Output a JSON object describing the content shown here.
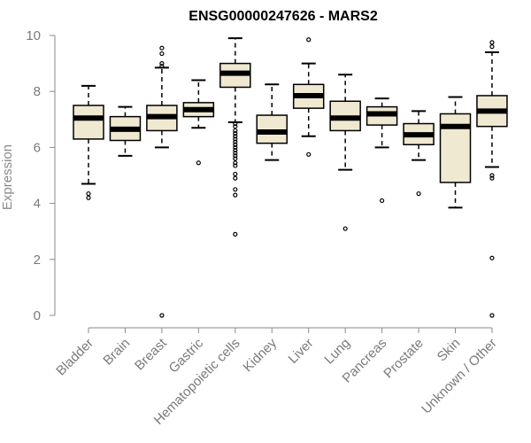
{
  "chart_data": {
    "type": "box",
    "title": "ENSG00000247626 - MARS2",
    "xlabel": "",
    "ylabel": "Expression",
    "ylim": [
      0,
      10
    ],
    "yticks": [
      0,
      2,
      4,
      6,
      8,
      10
    ],
    "grid": false,
    "colors": {
      "box_fill": "#efe9d2",
      "box_stroke": "#000000",
      "axis": "#8a8a8a"
    },
    "categories": [
      "Bladder",
      "Brain",
      "Breast",
      "Gastric",
      "Hematopoietic cells",
      "Kidney",
      "Liver",
      "Lung",
      "Pancreas",
      "Prostate",
      "Skin",
      "Unknown / Other"
    ],
    "boxes": [
      {
        "label": "Bladder",
        "whisker_low": 4.7,
        "q1": 6.3,
        "median": 7.05,
        "q3": 7.5,
        "whisker_high": 8.2,
        "outliers": [
          4.35,
          4.2
        ]
      },
      {
        "label": "Brain",
        "whisker_low": 5.7,
        "q1": 6.25,
        "median": 6.65,
        "q3": 7.1,
        "whisker_high": 7.45,
        "outliers": []
      },
      {
        "label": "Breast",
        "whisker_low": 6.0,
        "q1": 6.6,
        "median": 7.1,
        "q3": 7.5,
        "whisker_high": 8.85,
        "outliers": [
          9.55,
          9.35,
          9.0,
          8.9,
          0.0
        ]
      },
      {
        "label": "Gastric",
        "whisker_low": 6.7,
        "q1": 7.1,
        "median": 7.35,
        "q3": 7.6,
        "whisker_high": 8.4,
        "outliers": [
          5.45
        ]
      },
      {
        "label": "Hematopoietic cells",
        "whisker_low": 6.9,
        "q1": 8.15,
        "median": 8.65,
        "q3": 9.0,
        "whisker_high": 9.9,
        "outliers": [
          6.85,
          6.75,
          6.6,
          6.5,
          6.4,
          6.3,
          6.2,
          6.1,
          6.0,
          5.9,
          5.8,
          5.7,
          5.6,
          5.45,
          5.35,
          5.05,
          4.9,
          4.5,
          4.3,
          2.9
        ]
      },
      {
        "label": "Kidney",
        "whisker_low": 5.55,
        "q1": 6.15,
        "median": 6.55,
        "q3": 7.15,
        "whisker_high": 8.25,
        "outliers": []
      },
      {
        "label": "Liver",
        "whisker_low": 6.4,
        "q1": 7.4,
        "median": 7.85,
        "q3": 8.25,
        "whisker_high": 9.0,
        "outliers": [
          9.85,
          5.75
        ]
      },
      {
        "label": "Lung",
        "whisker_low": 5.2,
        "q1": 6.6,
        "median": 7.05,
        "q3": 7.65,
        "whisker_high": 8.6,
        "outliers": [
          3.1
        ]
      },
      {
        "label": "Pancreas",
        "whisker_low": 6.0,
        "q1": 6.8,
        "median": 7.2,
        "q3": 7.45,
        "whisker_high": 7.75,
        "outliers": [
          4.1
        ]
      },
      {
        "label": "Prostate",
        "whisker_low": 5.55,
        "q1": 6.1,
        "median": 6.45,
        "q3": 6.85,
        "whisker_high": 7.3,
        "outliers": [
          4.35
        ]
      },
      {
        "label": "Skin",
        "whisker_low": 3.85,
        "q1": 4.75,
        "median": 6.75,
        "q3": 7.2,
        "whisker_high": 7.8,
        "outliers": []
      },
      {
        "label": "Unknown / Other",
        "whisker_low": 5.3,
        "q1": 6.75,
        "median": 7.3,
        "q3": 7.85,
        "whisker_high": 9.4,
        "outliers": [
          9.75,
          9.6,
          5.0,
          4.9,
          2.05,
          0.0
        ]
      }
    ]
  }
}
